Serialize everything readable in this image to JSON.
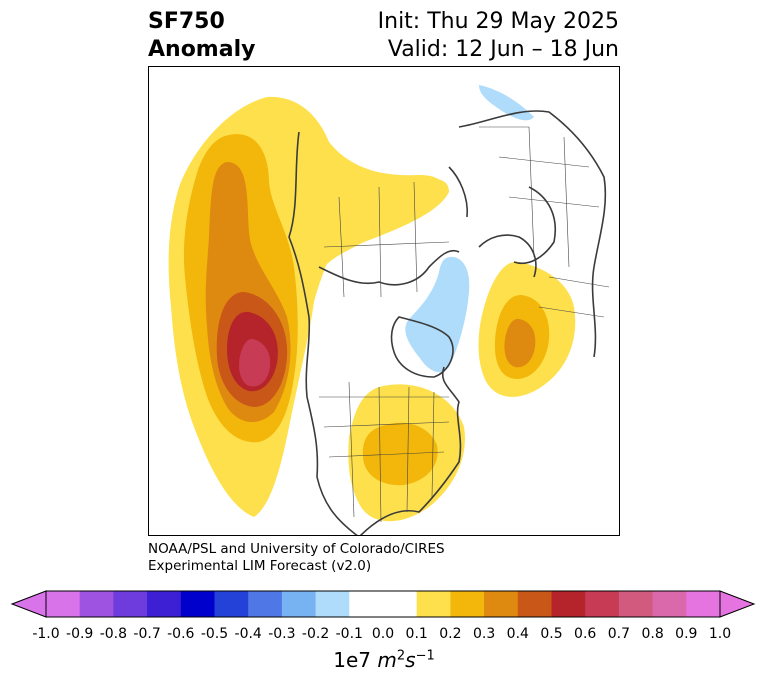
{
  "title": {
    "variable": "SF750",
    "kind": "Anomaly",
    "init": "Init: Thu 29 May 2025",
    "valid": "Valid: 12 Jun – 18 Jun"
  },
  "credit": {
    "line1": "NOAA/PSL and University of Colorado/CIRES",
    "line2": "Experimental LIM Forecast (v2.0)"
  },
  "colorbar": {
    "ticks": [
      "-1.0",
      "-0.9",
      "-0.8",
      "-0.7",
      "-0.6",
      "-0.5",
      "-0.4",
      "-0.3",
      "-0.2",
      "-0.1",
      "0.0",
      "0.1",
      "0.2",
      "0.3",
      "0.4",
      "0.5",
      "0.6",
      "0.7",
      "0.8",
      "0.9",
      "1.0"
    ],
    "colors": [
      "#d873e9",
      "#9e54e0",
      "#6e3bdc",
      "#3d1fd4",
      "#0000cd",
      "#2442d8",
      "#4f77e6",
      "#77b2f2",
      "#aedcfa",
      "#ffffff",
      "#ffffff",
      "#fde04b",
      "#f2b70a",
      "#de8a11",
      "#c95717",
      "#b5242a",
      "#c73b55",
      "#d15a7e",
      "#d969aa",
      "#e573e0"
    ],
    "units_prefix": "1e7 ",
    "units_m": "m",
    "units_m_exp": "2",
    "units_s": "s",
    "units_s_exp": "−1"
  }
}
